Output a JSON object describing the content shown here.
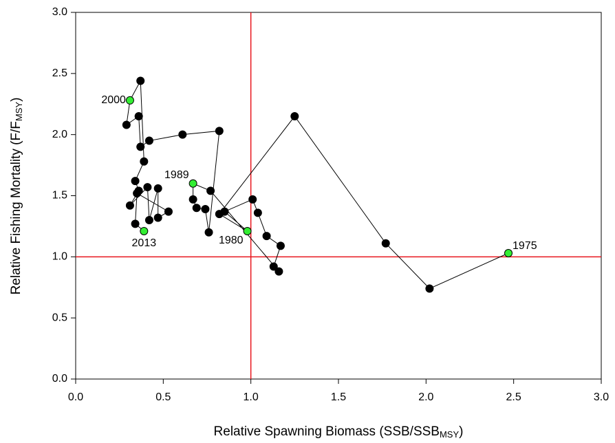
{
  "chart_data": {
    "type": "phase",
    "x_label": [
      "Relative Spawning Biomass (SSB/SSB",
      "MSY",
      ")"
    ],
    "y_label": [
      "Relative Fishing Mortality (F/F",
      "MSY",
      ")"
    ],
    "xlim": [
      0,
      3
    ],
    "ylim": [
      0,
      3
    ],
    "xticks": [
      {
        "value": 0,
        "label": "0.0"
      },
      0.5,
      {
        "value": 1,
        "label": "1.0"
      },
      1.5,
      {
        "value": 2,
        "label": "2.0"
      },
      2.5,
      {
        "value": 3,
        "label": "3.0"
      }
    ],
    "yticks": [
      {
        "value": 0,
        "label": "0.0"
      },
      0.5,
      {
        "value": 1,
        "label": "1.0"
      },
      1.5,
      {
        "value": 2,
        "label": "2.0"
      },
      2.5,
      {
        "value": 3,
        "label": "3.0"
      }
    ],
    "ref_lines": {
      "x": 1,
      "y": 1,
      "color": "#e8141c"
    },
    "color": "#000000",
    "highlight_color": "#33ee33",
    "x": [
      2.47,
      2.02,
      1.77,
      1.25,
      0.82,
      0.98,
      0.85,
      1.01,
      1.04,
      1.09,
      1.17,
      1.13,
      1.16,
      0.77,
      0.67,
      0.67,
      0.69,
      0.74,
      0.76,
      0.82,
      0.61,
      0.42,
      0.37,
      0.36,
      0.29,
      0.31,
      0.37,
      0.39,
      0.34,
      0.36,
      0.31,
      0.41,
      0.42,
      0.47,
      0.47,
      0.53,
      0.35,
      0.34,
      0.39
    ],
    "values": [
      1.03,
      0.74,
      1.11,
      2.15,
      1.35,
      1.21,
      1.37,
      1.47,
      1.36,
      1.17,
      1.09,
      0.92,
      0.88,
      1.54,
      1.6,
      1.47,
      1.4,
      1.39,
      1.2,
      2.03,
      2.0,
      1.95,
      1.9,
      2.15,
      2.08,
      2.28,
      2.44,
      1.78,
      1.62,
      1.54,
      1.42,
      1.57,
      1.3,
      1.56,
      1.32,
      1.37,
      1.52,
      1.27,
      1.21
    ],
    "point_labels": [
      "1975",
      null,
      null,
      null,
      null,
      "1980",
      null,
      null,
      null,
      null,
      null,
      null,
      null,
      null,
      "1989",
      null,
      null,
      null,
      null,
      null,
      null,
      null,
      null,
      null,
      null,
      "2000",
      null,
      null,
      null,
      null,
      null,
      null,
      null,
      null,
      null,
      null,
      null,
      null,
      "2013"
    ]
  }
}
